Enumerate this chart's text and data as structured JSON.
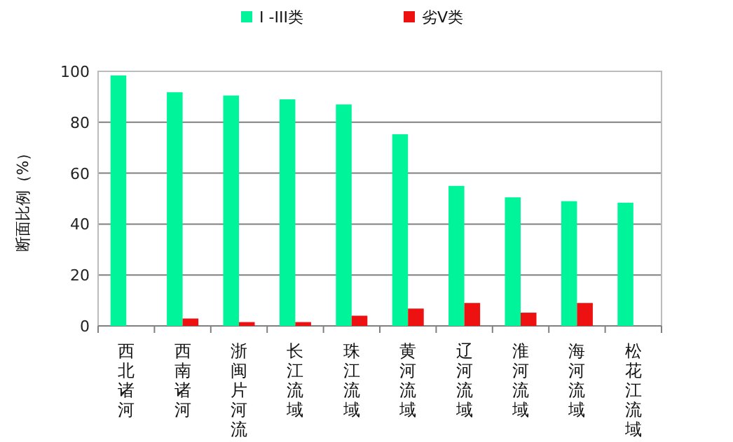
{
  "chart_data": {
    "type": "bar",
    "ylabel": "断面比例（%）",
    "categories": [
      "西北诸河",
      "西南诸河",
      "浙闽片河流",
      "长江流域",
      "珠江流域",
      "黄河流域",
      "辽河流域",
      "淮河流域",
      "海河流域",
      "松花江流域"
    ],
    "series": [
      {
        "name": "I -III类",
        "color": "#00f59b",
        "values": [
          98.4,
          91.8,
          90.5,
          89,
          87,
          75.3,
          55,
          50.5,
          49,
          48.4
        ]
      },
      {
        "name": "劣V类",
        "color": "#ee1111",
        "values": [
          0,
          2.9,
          1.5,
          1.5,
          4,
          6.8,
          9,
          5.2,
          9,
          0
        ]
      }
    ],
    "ylim": [
      0,
      100
    ],
    "yticks": [
      0,
      20,
      40,
      60,
      80,
      100
    ],
    "grid": "y",
    "legend": "top"
  }
}
